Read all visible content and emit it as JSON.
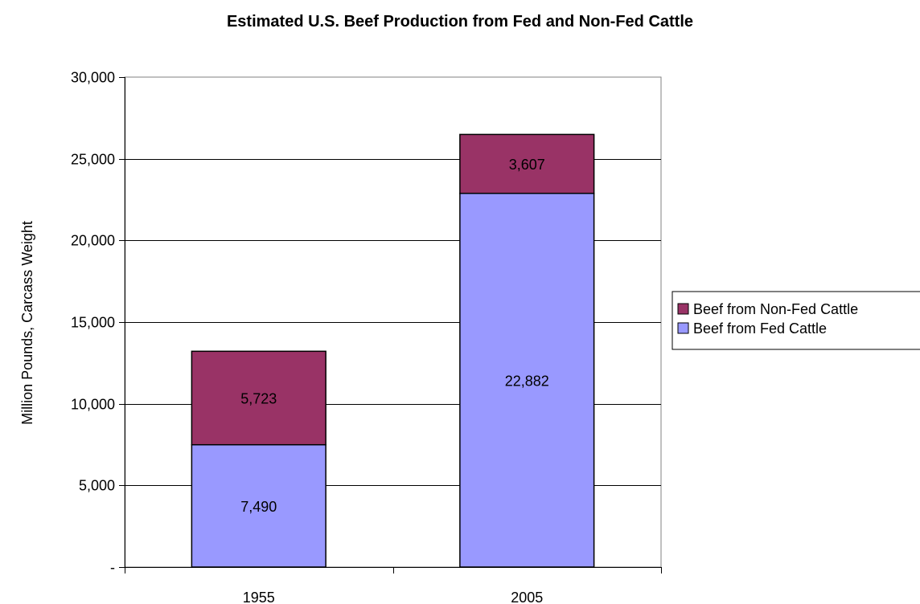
{
  "chart_data": {
    "type": "bar",
    "stacked": true,
    "title": "Estimated U.S. Beef Production from Fed and Non-Fed Cattle",
    "xlabel": "",
    "ylabel": "Million Pounds, Carcass Weight",
    "categories": [
      "1955",
      "2005"
    ],
    "series": [
      {
        "name": "Beef from Fed Cattle",
        "values": [
          7490,
          22882
        ],
        "labels": [
          "7,490",
          "22,882"
        ],
        "color": "#9999ff"
      },
      {
        "name": "Beef from Non-Fed Cattle",
        "values": [
          5723,
          3607
        ],
        "labels": [
          "5,723",
          "3,607"
        ],
        "color": "#993366"
      }
    ],
    "ylim": [
      0,
      30000
    ],
    "yticks": [
      {
        "value": 0,
        "label": "-"
      },
      {
        "value": 5000,
        "label": "5,000"
      },
      {
        "value": 10000,
        "label": "10,000"
      },
      {
        "value": 15000,
        "label": "15,000"
      },
      {
        "value": 20000,
        "label": "20,000"
      },
      {
        "value": 25000,
        "label": "25,000"
      },
      {
        "value": 30000,
        "label": "30,000"
      }
    ],
    "grid": true,
    "legend": {
      "position": "right",
      "order": [
        "Beef from Non-Fed Cattle",
        "Beef from Fed Cattle"
      ]
    }
  }
}
